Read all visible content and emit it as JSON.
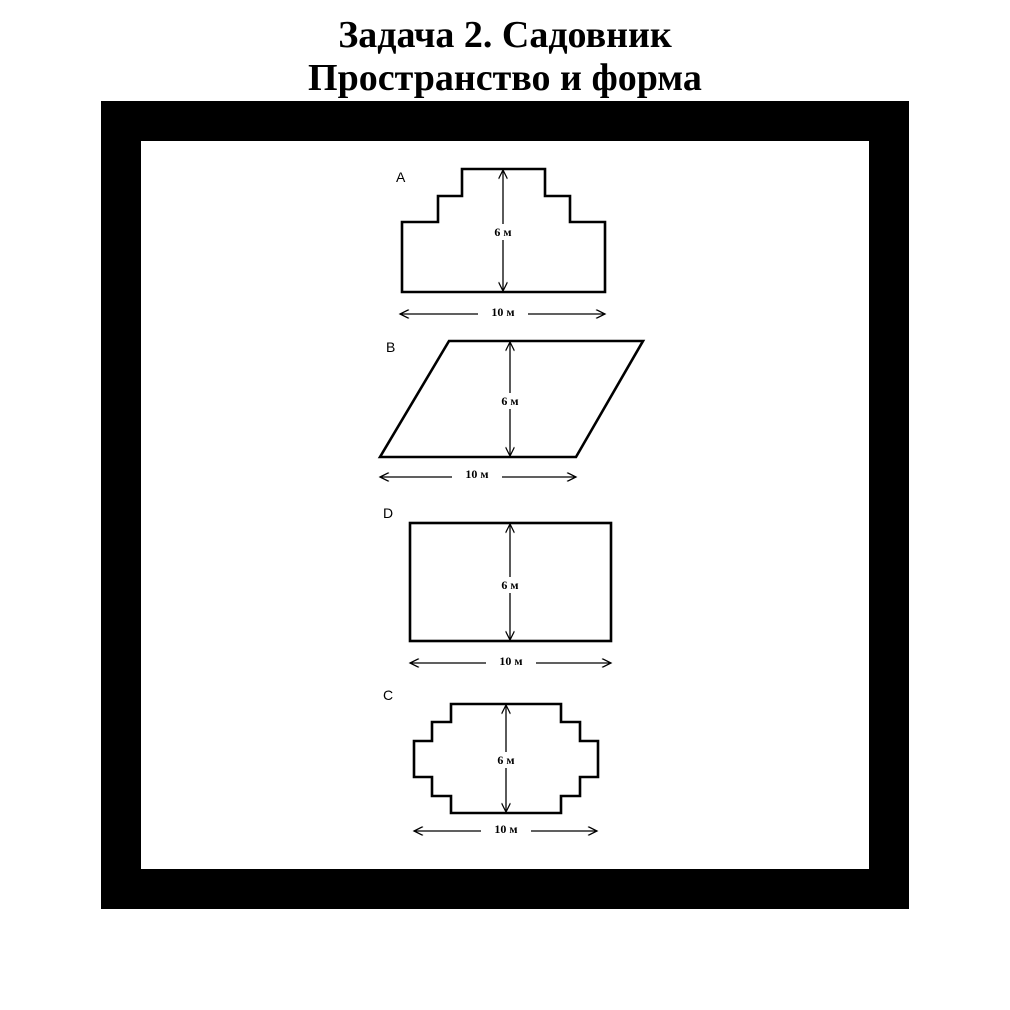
{
  "title": {
    "line1": "Задача 2. Садовник",
    "line2": "Пространство и форма"
  },
  "figures": [
    {
      "letter": "A",
      "height_label": "6 м",
      "width_label": "10 м"
    },
    {
      "letter": "B",
      "height_label": "6 м",
      "width_label": "10 м"
    },
    {
      "letter": "D",
      "height_label": "6 м",
      "width_label": "10 м"
    },
    {
      "letter": "C",
      "height_label": "6 м",
      "width_label": "10 м"
    }
  ]
}
